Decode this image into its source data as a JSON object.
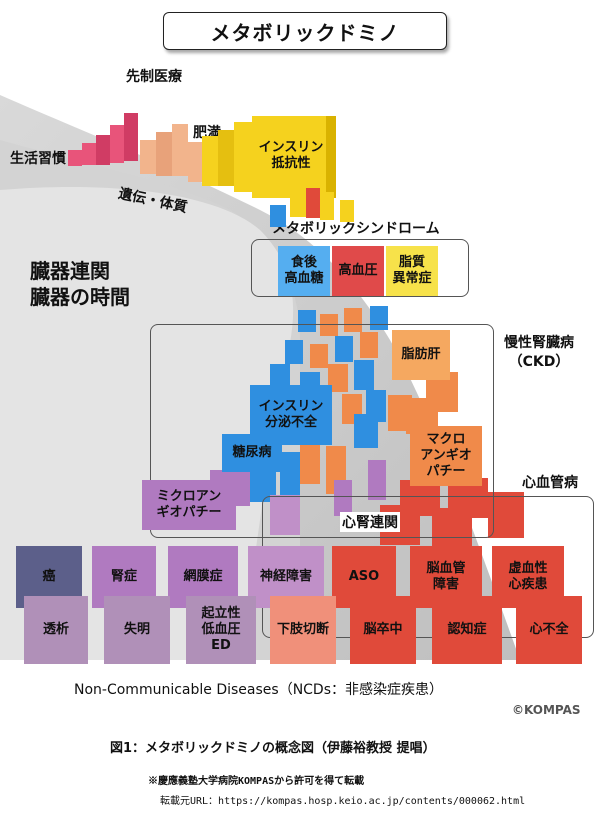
{
  "title": "メタボリックドミノ",
  "labels": {
    "prevent": "先制医療",
    "lifestyle": "生活習慣",
    "obesity": "肥満",
    "heredity": "遺伝・体質",
    "organ_link_1": "臓器連関",
    "organ_link_2": "臓器の時間",
    "metabolic_syndrome": "メタボリックシンドローム",
    "ckd": "慢性腎臓病\n（CKD）",
    "cardiovascular": "心血管病",
    "cardiorenal": "心腎連関",
    "ncd": "Non-Communicable Diseases（NCDs：非感染症疾患）",
    "copyright": "©KOMPAS"
  },
  "blocks": {
    "insulin_resistance": "インスリン\n抵抗性",
    "postprandial": "食後\n高血糖",
    "hypertension": "高血圧",
    "dyslipidemia": "脂質\n異常症",
    "fatty_liver": "脂肪肝",
    "insulin_secretion": "インスリン\n分泌不全",
    "diabetes": "糖尿病",
    "macroangiopathy": "マクロ\nアンギオ\nパチー",
    "microangiopathy": "ミクロアン\nギオパチー",
    "cancer": "癌",
    "nephropathy": "腎症",
    "retinopathy": "網膜症",
    "neuropathy": "神経障害",
    "aso": "ASO",
    "cerebrovascular": "脳血管\n障害",
    "heart_disease": "虚血性\n心疾患",
    "dialysis": "透析",
    "blindness": "失明",
    "orthostatic": "起立性\n低血圧\nED",
    "amputation": "下肢切断",
    "stroke": "脳卒中",
    "dementia": "認知症",
    "heart_failure": "心不全"
  },
  "caption": {
    "figure": "図1：メタボリックドミノの概念図（伊藤裕教授 提唱）",
    "permission": "※慶應義塾大学病院KOMPASから許可を得て転載",
    "source": "転載元URL：https://kompas.hosp.keio.ac.jp/contents/000062.html"
  },
  "colors": {
    "pink": "#e8547a",
    "peach": "#f2b48c",
    "yellow": "#f5d21e",
    "blue": "#2f8fe0",
    "red": "#e04a3a",
    "orange": "#f08a4a",
    "purple": "#b07ac0",
    "slate": "#5c5f8a",
    "mauve": "#b090b8",
    "salmon": "#f0907a"
  }
}
